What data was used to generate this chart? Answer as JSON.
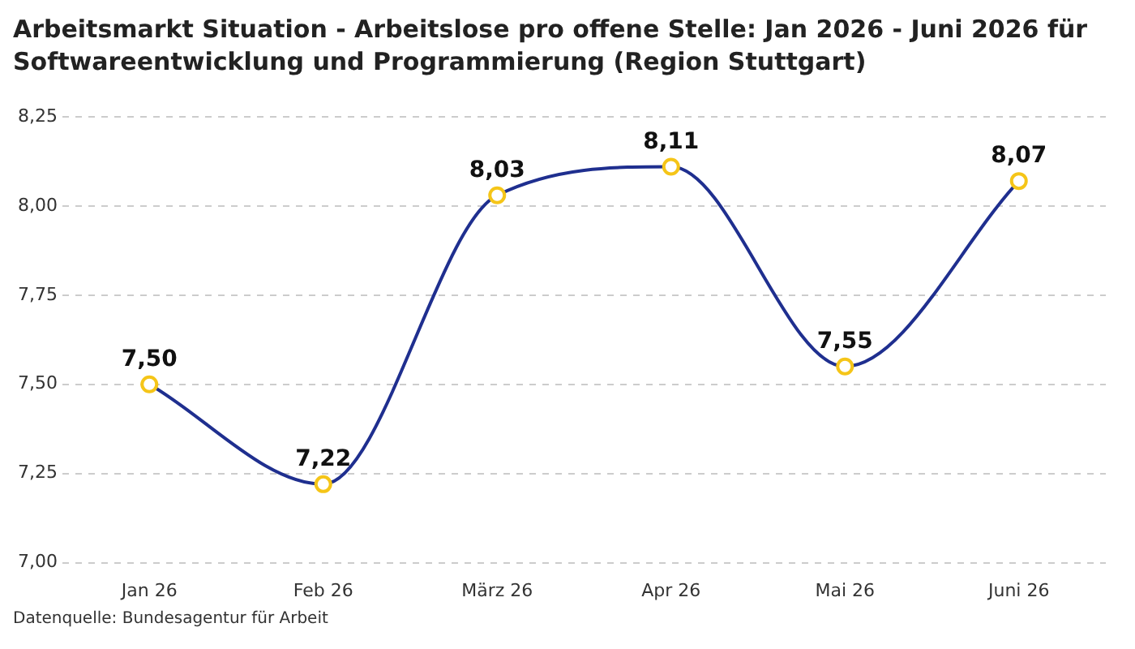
{
  "chart_data": {
    "type": "line",
    "title": "Arbeitsmarkt Situation - Arbeitslose pro offene Stelle: Jan 2026 - Juni 2026 für Softwareentwicklung und Programmierung (Region Stuttgart)",
    "categories": [
      "Jan 26",
      "Feb 26",
      "März 26",
      "Apr 26",
      "Mai 26",
      "Juni 26"
    ],
    "series": [
      {
        "color": "#1f2f8f",
        "values": [
          7.5,
          7.22,
          8.03,
          8.11,
          7.55,
          8.07
        ],
        "value_labels": [
          "7,50",
          "7,22",
          "8,03",
          "8,11",
          "7,55",
          "8,07"
        ]
      }
    ],
    "ylim": [
      7.0,
      8.25
    ],
    "yticks": [
      {
        "value": 7.0,
        "label": "7,00"
      },
      {
        "value": 7.25,
        "label": "7,25"
      },
      {
        "value": 7.5,
        "label": "7,50"
      },
      {
        "value": 7.75,
        "label": "7,75"
      },
      {
        "value": 8.0,
        "label": "8,00"
      },
      {
        "value": 8.25,
        "label": "8,25"
      }
    ],
    "grid": "y",
    "legend": false,
    "marker": "circle",
    "line_style": "solid",
    "annotations": [
      "Datenquelle: Bundesagentur für Arbeit"
    ]
  }
}
